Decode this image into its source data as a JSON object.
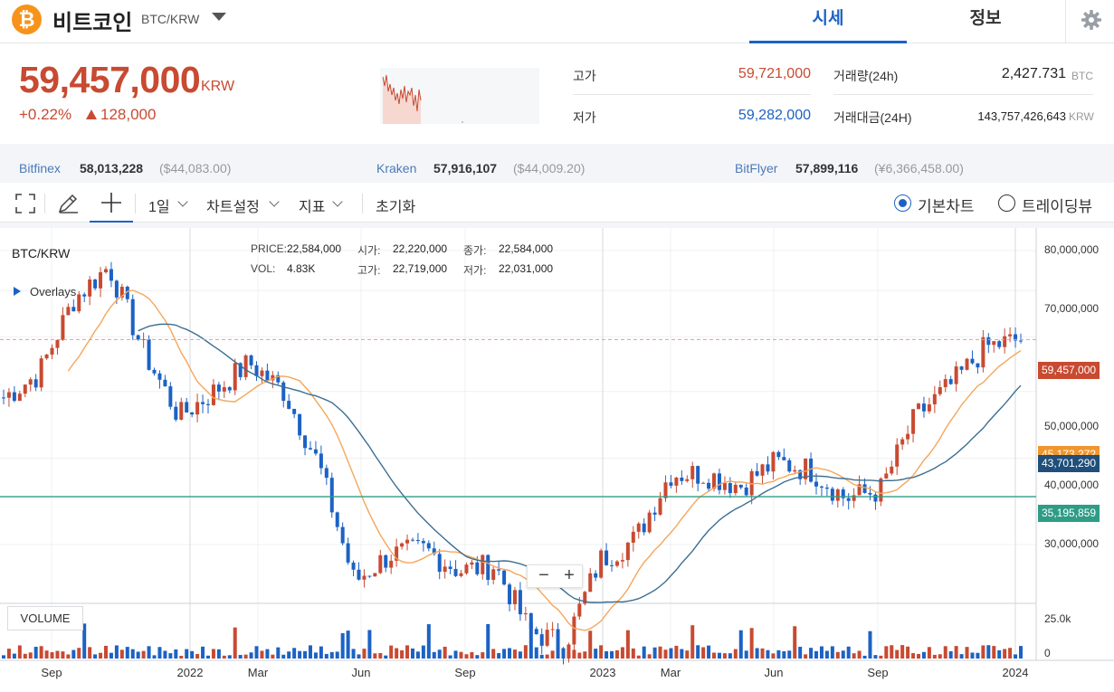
{
  "header": {
    "coin_icon": "bitcoin-icon",
    "coin_name": "비트코인",
    "pair": "BTC/KRW",
    "tabs": [
      "시세",
      "정보"
    ],
    "settings_icon": "gear-icon"
  },
  "price": {
    "current": "59,457,000",
    "unit": "KRW",
    "change_rate": "+0.22%",
    "change_amount": "128,000"
  },
  "stats": {
    "high_label": "고가",
    "high": "59,721,000",
    "low_label": "저가",
    "low": "59,282,000",
    "volume_label": "거래량(24h)",
    "volume": "2,427.731",
    "volume_unit": "BTC",
    "amount_label": "거래대금(24H)",
    "amount": "143,757,426,643",
    "amount_unit": "KRW"
  },
  "exchanges": [
    {
      "name": "Bitfinex",
      "price": "58,013,228",
      "alt": "($44,083.00)"
    },
    {
      "name": "Kraken",
      "price": "57,916,107",
      "alt": "($44,009.20)"
    },
    {
      "name": "BitFlyer",
      "price": "57,899,116",
      "alt": "(¥6,366,458.00)"
    }
  ],
  "toolbar": {
    "interval": "1일",
    "chart_settings": "차트설정",
    "indicators": "지표",
    "reset": "초기화",
    "basic_chart": "기본차트",
    "trading_view": "트레이딩뷰"
  },
  "chart": {
    "symbol": "BTC/KRW",
    "overlays": "Overlays",
    "legend": {
      "price_label": "PRICE:",
      "price": "22,584,000",
      "vol_label": "VOL:",
      "vol": "4.83K",
      "open_label": "시가:",
      "open": "22,220,000",
      "high_label": "고가:",
      "high": "22,719,000",
      "close_label": "종가:",
      "close": "22,584,000",
      "low_label": "저가:",
      "low": "22,031,000"
    },
    "volume_label": "VOLUME",
    "zoom_out": "−",
    "zoom_in": "+",
    "volume_ticks": [
      "25.0k",
      "0"
    ],
    "price_tags": {
      "last": "59,457,000",
      "ma_orange": "45,173,272",
      "ma_blue": "43,701,290",
      "line_green": "35,195,859"
    },
    "colors": {
      "up": "#c84a31",
      "down": "#1c62c4",
      "ma_short": "#f5a65b",
      "ma_long": "#3d6e91",
      "line": "#2e9c86"
    }
  },
  "chart_data": {
    "type": "candlestick",
    "y_scale": "log",
    "y_ticks": [
      "80,000,000",
      "70,000,000",
      "50,000,000",
      "40,000,000",
      "30,000,000"
    ],
    "x_ticks": [
      "Sep",
      "2022",
      "Mar",
      "Jun",
      "Sep",
      "2023",
      "Mar",
      "Jun",
      "Sep",
      "2024"
    ],
    "series_approx": [
      {
        "date": "2021-08",
        "close": 49000000
      },
      {
        "date": "2021-09",
        "close": 53000000
      },
      {
        "date": "2021-10",
        "close": 68000000
      },
      {
        "date": "2021-11",
        "close": 76000000
      },
      {
        "date": "2021-12",
        "close": 57000000
      },
      {
        "date": "2022-01",
        "close": 46000000
      },
      {
        "date": "2022-02",
        "close": 50000000
      },
      {
        "date": "2022-03",
        "close": 55000000
      },
      {
        "date": "2022-04",
        "close": 50000000
      },
      {
        "date": "2022-05",
        "close": 39000000
      },
      {
        "date": "2022-06",
        "close": 26500000
      },
      {
        "date": "2022-07",
        "close": 29000000
      },
      {
        "date": "2022-08",
        "close": 29500000
      },
      {
        "date": "2022-09",
        "close": 27500000
      },
      {
        "date": "2022-10",
        "close": 28000000
      },
      {
        "date": "2022-11",
        "close": 22500000
      },
      {
        "date": "2022-12",
        "close": 21500000
      },
      {
        "date": "2023-01",
        "close": 28500000
      },
      {
        "date": "2023-02",
        "close": 30500000
      },
      {
        "date": "2023-03",
        "close": 38000000
      },
      {
        "date": "2023-04",
        "close": 38000000
      },
      {
        "date": "2023-05",
        "close": 36500000
      },
      {
        "date": "2023-06",
        "close": 39500000
      },
      {
        "date": "2023-07",
        "close": 38500000
      },
      {
        "date": "2023-08",
        "close": 35000000
      },
      {
        "date": "2023-09",
        "close": 36000000
      },
      {
        "date": "2023-10",
        "close": 46000000
      },
      {
        "date": "2023-11",
        "close": 51000000
      },
      {
        "date": "2023-12",
        "close": 58000000
      },
      {
        "date": "2024-01",
        "close": 59457000
      }
    ]
  }
}
